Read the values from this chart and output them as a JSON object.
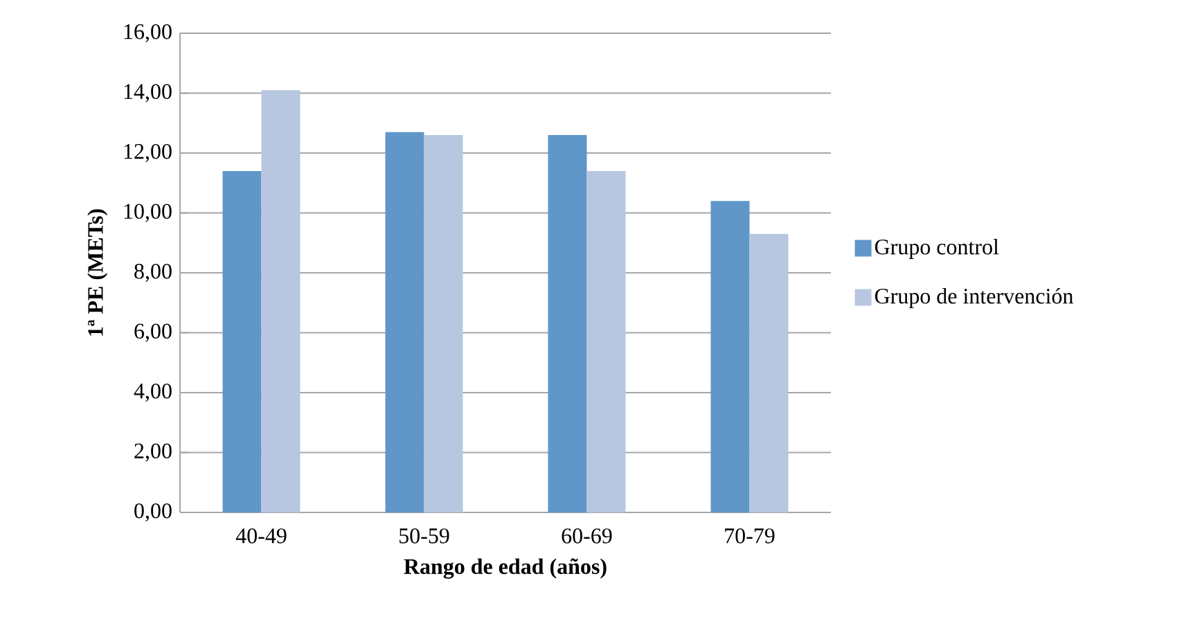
{
  "chart_data": {
    "type": "bar",
    "xlabel": "Rango de edad (años)",
    "ylabel": "1ª PE (METs)",
    "categories": [
      "40-49",
      "50-59",
      "60-69",
      "70-79"
    ],
    "series": [
      {
        "name": "Grupo control",
        "color": "#6096c8",
        "values": [
          11.4,
          12.7,
          12.6,
          10.4
        ]
      },
      {
        "name": "Grupo de intervención",
        "color": "#b8c7e0",
        "values": [
          14.1,
          12.6,
          11.4,
          9.3
        ]
      }
    ],
    "ylim": [
      0,
      16
    ],
    "yticks": [
      {
        "value": 0,
        "label": "0,00"
      },
      {
        "value": 2,
        "label": "2,00"
      },
      {
        "value": 4,
        "label": "4,00"
      },
      {
        "value": 6,
        "label": "6,00"
      },
      {
        "value": 8,
        "label": "8,00"
      },
      {
        "value": 10,
        "label": "10,00"
      },
      {
        "value": 12,
        "label": "12,00"
      },
      {
        "value": 14,
        "label": "14,00"
      },
      {
        "value": 16,
        "label": "16,00"
      }
    ],
    "grid": "y",
    "legend": "right"
  }
}
